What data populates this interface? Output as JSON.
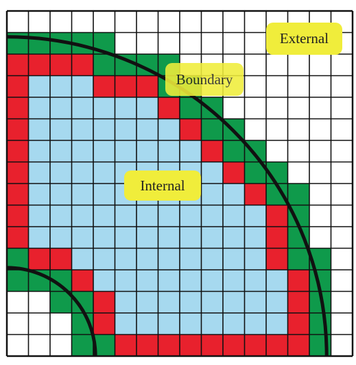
{
  "labels": {
    "internal": "Internal",
    "boundary": "Boundary",
    "external": "External"
  },
  "colors": {
    "internal_cell": "#a6d9ef",
    "boundary_cell": "#e8212d",
    "external_near_cell": "#0f9a4b",
    "empty_cell": "#ffffff",
    "grid_line": "#111111",
    "curve": "#111111",
    "label_highlight": "#f0ed3b"
  },
  "grid": {
    "columns": 16,
    "rows": 16
  },
  "legend_semantics": {
    "internal": "light blue cells",
    "boundary": "red cells",
    "external": "white / green cells"
  }
}
